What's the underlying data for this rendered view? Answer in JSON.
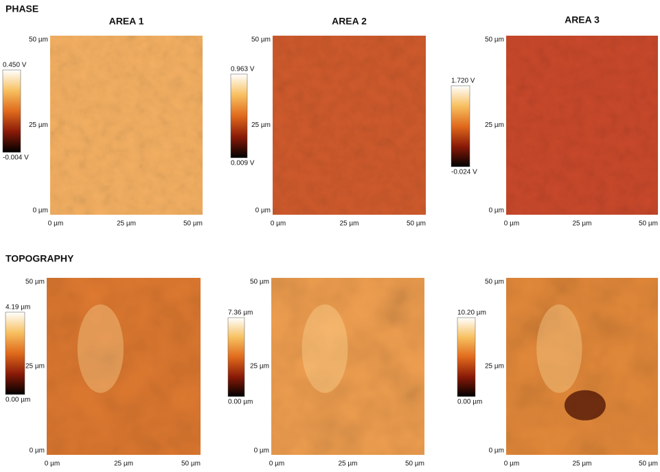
{
  "rows": [
    {
      "label": "PHASE",
      "panels": [
        {
          "title": "AREA 1",
          "y_ticks": [
            "50 µm",
            "25 µm",
            "0 µm"
          ],
          "x_ticks": [
            "0 µm",
            "25 µm",
            "50 µm"
          ],
          "colorbar": {
            "max": "0.450 V",
            "min": "-0.004 V"
          }
        },
        {
          "title": "AREA 2",
          "y_ticks": [
            "50 µm",
            "25 µm",
            "0 µm"
          ],
          "x_ticks": [
            "0 µm",
            "25 µm",
            "50 µm"
          ],
          "colorbar": {
            "max": "0.963 V",
            "min": "0.009 V"
          }
        },
        {
          "title": "AREA 3",
          "y_ticks": [
            "50 µm",
            "25 µm",
            "0 µm"
          ],
          "x_ticks": [
            "0 µm",
            "25 µm",
            "50 µm"
          ],
          "colorbar": {
            "max": "1.720 V",
            "min": "-0.024 V"
          }
        }
      ]
    },
    {
      "label": "TOPOGRAPHY",
      "panels": [
        {
          "y_ticks": [
            "50 µm",
            "25 µm",
            "0 µm"
          ],
          "x_ticks": [
            "0 µm",
            "25 µm",
            "50 µm"
          ],
          "colorbar": {
            "max": "4.19 µm",
            "min": "0.00 µm"
          }
        },
        {
          "y_ticks": [
            "50 µm",
            "25 µm",
            "0 µm"
          ],
          "x_ticks": [
            "0 µm",
            "25 µm",
            "50 µm"
          ],
          "colorbar": {
            "max": "7.36 µm",
            "min": "0.00 µm"
          }
        },
        {
          "y_ticks": [
            "50 µm",
            "25 µm",
            "0 µm"
          ],
          "x_ticks": [
            "0 µm",
            "25 µm",
            "50 µm"
          ],
          "colorbar": {
            "max": "10.20 µm",
            "min": "0.00 µm"
          }
        }
      ]
    }
  ]
}
